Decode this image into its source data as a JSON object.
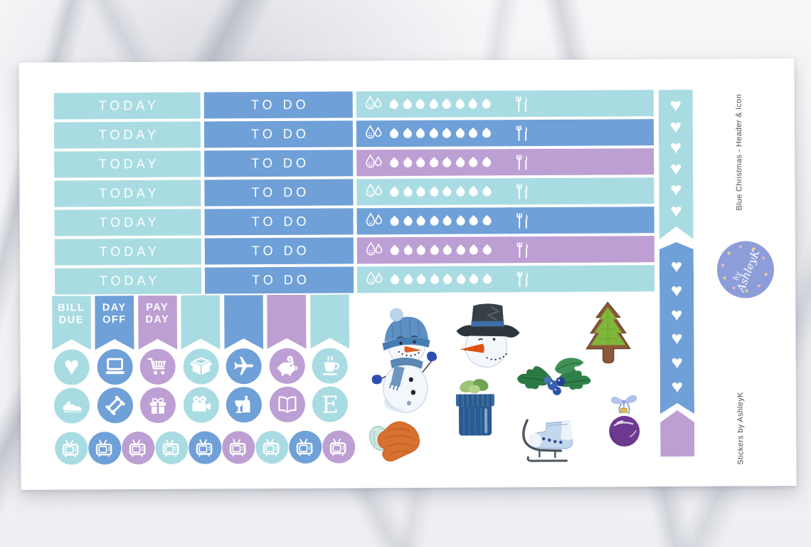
{
  "colors": {
    "teal": "#a9dce2",
    "blue": "#6fa0d8",
    "purple": "#bd9fd3",
    "sheet_white": "#ffffff",
    "sticker_text_white": "#ffffff",
    "side_text_gray": "#4d5056",
    "logo_bg": "#8c9dd9",
    "logo_heart_pink": "#f0b6c3",
    "logo_heart_yellow": "#f3d489"
  },
  "sheet": {
    "labels": {
      "today": "TODAY",
      "todo": "TO DO"
    },
    "letter_e": "E",
    "header_rows": [
      {
        "tracker_color": "teal"
      },
      {
        "tracker_color": "blue"
      },
      {
        "tracker_color": "purple"
      },
      {
        "tracker_color": "teal"
      },
      {
        "tracker_color": "blue"
      },
      {
        "tracker_color": "purple"
      },
      {
        "tracker_color": "teal"
      }
    ],
    "hydrate_tracker": {
      "icon": "water-drops-smiley-icon",
      "droplets_per_row": 8
    },
    "meal_tracker": {
      "icon": "fork-knife-icon"
    },
    "flags": [
      {
        "color": "teal",
        "line1": "BILL",
        "line2": "DUE"
      },
      {
        "color": "blue",
        "line1": "DAY",
        "line2": "OFF"
      },
      {
        "color": "purple",
        "line1": "PAY",
        "line2": "DAY"
      },
      {
        "color": "teal",
        "line1": "",
        "line2": ""
      },
      {
        "color": "blue",
        "line1": "",
        "line2": ""
      },
      {
        "color": "purple",
        "line1": "",
        "line2": ""
      },
      {
        "color": "teal",
        "line1": "",
        "line2": ""
      }
    ],
    "icon_circles_row1": [
      {
        "icon": "heart-icon",
        "color": "teal"
      },
      {
        "icon": "laptop-icon",
        "color": "blue"
      },
      {
        "icon": "shopping-cart-icon",
        "color": "purple"
      },
      {
        "icon": "open-box-icon",
        "color": "teal"
      },
      {
        "icon": "airplane-icon",
        "color": "blue"
      },
      {
        "icon": "piggy-bank-icon",
        "color": "purple"
      },
      {
        "icon": "coffee-cup-icon",
        "color": "teal"
      }
    ],
    "icon_circles_row2": [
      {
        "icon": "sneaker-icon",
        "color": "teal"
      },
      {
        "icon": "dumbbell-icon",
        "color": "blue"
      },
      {
        "icon": "gift-icon",
        "color": "purple"
      },
      {
        "icon": "video-camera-icon",
        "color": "teal"
      },
      {
        "icon": "wine-icon",
        "color": "blue"
      },
      {
        "icon": "open-book-icon",
        "color": "purple"
      },
      {
        "icon": "letter-e-icon",
        "color": "teal"
      }
    ],
    "icon_circles_row3": [
      {
        "icon": "tv-icon",
        "color": "teal"
      },
      {
        "icon": "tv-icon",
        "color": "blue"
      },
      {
        "icon": "tv-icon",
        "color": "purple"
      },
      {
        "icon": "tv-icon",
        "color": "teal"
      },
      {
        "icon": "tv-icon",
        "color": "blue"
      },
      {
        "icon": "tv-icon",
        "color": "purple"
      },
      {
        "icon": "tv-icon",
        "color": "teal"
      },
      {
        "icon": "tv-icon",
        "color": "blue"
      },
      {
        "icon": "tv-icon",
        "color": "purple"
      }
    ],
    "heart_checklist": [
      {
        "color": "teal",
        "hearts": 6,
        "shape": "flag-notch-bottom"
      },
      {
        "color": "blue",
        "hearts": 6,
        "shape": "flag-point-top-notch-bottom"
      },
      {
        "color": "purple",
        "hearts": 0,
        "shape": "flag-point-top"
      }
    ],
    "illustrations": [
      "snowman",
      "snowman-head-top-hat",
      "christmas-tree-cookie",
      "holly-berries",
      "gift-box",
      "mitten",
      "ice-skate",
      "bauble-ornament"
    ],
    "side_label_top": "Blue  Christmas - Header & Icon",
    "side_label_bottom": "Stickers by AshleyK",
    "logo": {
      "text_by": "by",
      "text_name": "AshleyK"
    }
  }
}
